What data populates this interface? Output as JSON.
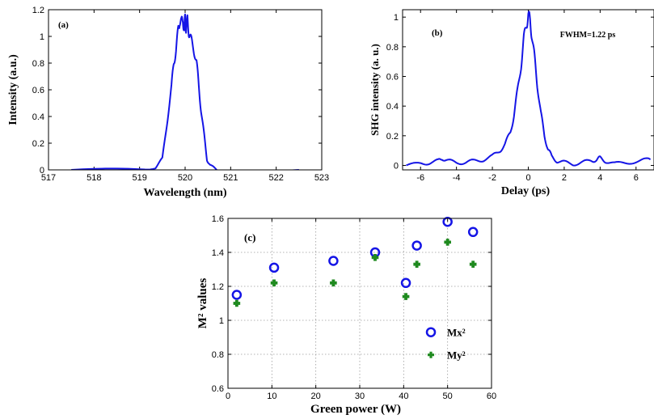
{
  "chart_data": [
    {
      "id": "a",
      "type": "line",
      "panel_label": "(a)",
      "title": "",
      "xlabel": "Wavelength (nm)",
      "ylabel": "Intensity (a.u.)",
      "xlim": [
        517,
        523
      ],
      "ylim": [
        0,
        1.2
      ],
      "xticks": [
        517,
        518,
        519,
        520,
        521,
        522,
        523
      ],
      "yticks": [
        0,
        0.2,
        0.4,
        0.6,
        0.8,
        1,
        1.2
      ],
      "grid": false,
      "color": "#1515e6",
      "series": [
        {
          "x": [
            517.5,
            519.0,
            519.35,
            519.5,
            519.6,
            519.7,
            519.75,
            519.8,
            519.85,
            519.88,
            519.92,
            519.95,
            519.98,
            520.0,
            520.02,
            520.05,
            520.08,
            520.12,
            520.18,
            520.25,
            520.3,
            520.35,
            520.42,
            520.48,
            520.55,
            520.7,
            522.5
          ],
          "y": [
            0.0,
            0.0,
            0.02,
            0.08,
            0.35,
            0.62,
            0.8,
            0.9,
            1.05,
            1.12,
            1.1,
            1.14,
            1.03,
            1.16,
            1.05,
            1.12,
            1.04,
            0.98,
            0.92,
            0.82,
            0.62,
            0.45,
            0.25,
            0.08,
            0.03,
            0.0,
            0.0
          ]
        }
      ]
    },
    {
      "id": "b",
      "type": "line",
      "panel_label": "(b)",
      "title": "",
      "annotation": "FWHM=1.22 ps",
      "xlabel": "Delay (ps)",
      "ylabel": "SHG intensity (a. u.)",
      "xlim": [
        -7,
        7
      ],
      "ylim": [
        -0.03,
        1.05
      ],
      "xticks": [
        -6,
        -4,
        -2,
        0,
        2,
        4,
        6
      ],
      "yticks": [
        0,
        0.2,
        0.4,
        0.6,
        0.8,
        1
      ],
      "grid": false,
      "color": "#1515e6",
      "series": [
        {
          "x": [
            -6.8,
            -6.0,
            -5.5,
            -5.0,
            -4.8,
            -4.5,
            -4.0,
            -3.5,
            -3.0,
            -2.5,
            -2.0,
            -1.6,
            -1.3,
            -1.0,
            -0.8,
            -0.6,
            -0.4,
            -0.25,
            -0.1,
            0.0,
            0.1,
            0.2,
            0.35,
            0.5,
            0.7,
            0.9,
            1.1,
            1.3,
            1.6,
            2.0,
            2.5,
            3.0,
            3.5,
            3.8,
            4.0,
            4.3,
            4.8,
            5.5,
            6.2,
            6.8
          ],
          "y": [
            0.0,
            0.01,
            0.02,
            0.03,
            0.05,
            0.03,
            0.02,
            0.02,
            0.03,
            0.04,
            0.06,
            0.1,
            0.14,
            0.22,
            0.34,
            0.5,
            0.68,
            0.85,
            0.95,
            1.02,
            0.97,
            0.88,
            0.72,
            0.55,
            0.35,
            0.2,
            0.11,
            0.06,
            0.03,
            0.02,
            0.01,
            0.02,
            0.03,
            0.04,
            0.05,
            0.03,
            0.01,
            0.02,
            0.03,
            0.04
          ]
        }
      ]
    },
    {
      "id": "c",
      "type": "scatter",
      "panel_label": "(c)",
      "title": "",
      "xlabel": "Green power (W)",
      "ylabel": "M² values",
      "xlim": [
        0,
        60
      ],
      "ylim": [
        0.6,
        1.6
      ],
      "xticks": [
        0,
        10,
        20,
        30,
        40,
        50,
        60
      ],
      "yticks": [
        0.6,
        0.8,
        1,
        1.2,
        1.4,
        1.6
      ],
      "grid": true,
      "legend_position": "bottom-right",
      "series": [
        {
          "name": "Mx²",
          "marker": "open-circle",
          "color": "#1515e6",
          "x": [
            2,
            10.5,
            24,
            33.5,
            40.5,
            43,
            50,
            55.8
          ],
          "y": [
            1.15,
            1.31,
            1.35,
            1.4,
            1.22,
            1.44,
            1.58,
            1.52
          ]
        },
        {
          "name": "My²",
          "marker": "filled-cross",
          "color": "#1f8a1f",
          "x": [
            2,
            10.5,
            24,
            33.5,
            40.5,
            43,
            50,
            55.8
          ],
          "y": [
            1.1,
            1.22,
            1.22,
            1.37,
            1.14,
            1.33,
            1.46,
            1.33
          ]
        }
      ]
    }
  ]
}
